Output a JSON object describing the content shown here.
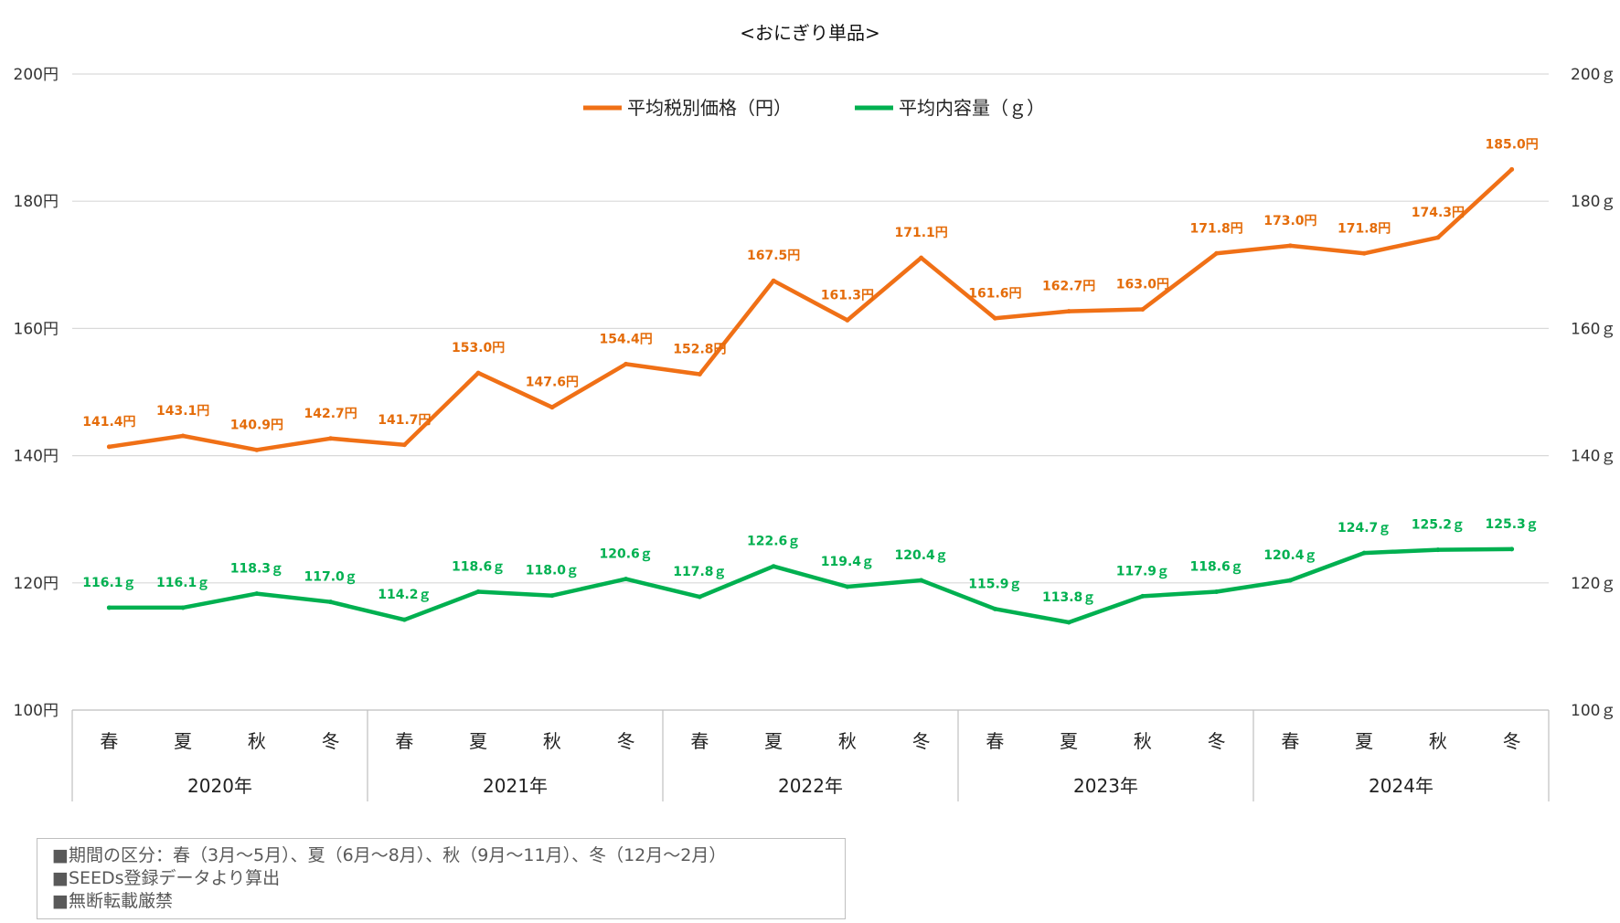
{
  "chart_data": {
    "type": "line",
    "title": "<おにぎり単品>",
    "categories": [
      "春",
      "夏",
      "秋",
      "冬",
      "春",
      "夏",
      "秋",
      "冬",
      "春",
      "夏",
      "秋",
      "冬",
      "春",
      "夏",
      "秋",
      "冬",
      "春",
      "夏",
      "秋",
      "冬"
    ],
    "years": [
      "2020年",
      "2021年",
      "2022年",
      "2023年",
      "2024年"
    ],
    "series": [
      {
        "name": "平均税別価格（円）",
        "axis": "left",
        "color": "#f07016",
        "values": [
          141.4,
          143.1,
          140.9,
          142.7,
          141.7,
          153.0,
          147.6,
          154.4,
          152.8,
          167.5,
          161.3,
          171.1,
          161.6,
          162.7,
          163.0,
          171.8,
          173.0,
          171.8,
          174.3,
          185.0
        ],
        "labels": [
          "141.4円",
          "143.1円",
          "140.9円",
          "142.7円",
          "141.7円",
          "153.0円",
          "147.6円",
          "154.4円",
          "152.8円",
          "167.5円",
          "161.3円",
          "171.1円",
          "161.6円",
          "162.7円",
          "163.0円",
          "171.8円",
          "173.0円",
          "171.8円",
          "174.3円",
          "185.0円"
        ]
      },
      {
        "name": "平均内容量（ｇ）",
        "axis": "right",
        "color": "#00b050",
        "values": [
          116.1,
          116.1,
          118.3,
          117.0,
          114.2,
          118.6,
          118.0,
          120.6,
          117.8,
          122.6,
          119.4,
          120.4,
          115.9,
          113.8,
          117.9,
          118.6,
          120.4,
          124.7,
          125.2,
          125.3
        ],
        "labels": [
          "116.1ｇ",
          "116.1ｇ",
          "118.3ｇ",
          "117.0ｇ",
          "114.2ｇ",
          "118.6ｇ",
          "118.0ｇ",
          "120.6ｇ",
          "117.8ｇ",
          "122.6ｇ",
          "119.4ｇ",
          "120.4ｇ",
          "115.9ｇ",
          "113.8ｇ",
          "117.9ｇ",
          "118.6ｇ",
          "120.4ｇ",
          "124.7ｇ",
          "125.2ｇ",
          "125.3ｇ"
        ]
      }
    ],
    "ylim": [
      100,
      200
    ],
    "y2lim": [
      100,
      200
    ],
    "yticks": [
      "100円",
      "120円",
      "140円",
      "160円",
      "180円",
      "200円"
    ],
    "y2ticks": [
      "100ｇ",
      "120ｇ",
      "140ｇ",
      "160ｇ",
      "180ｇ",
      "200ｇ"
    ],
    "grid": true,
    "legend_position": "top"
  },
  "notes": [
    "■期間の区分：春（3月～5月）、夏（6月～8月）、秋（9月～11月）、冬（12月～2月）",
    "■SEEDs登録データより算出",
    "■無断転載厳禁"
  ]
}
